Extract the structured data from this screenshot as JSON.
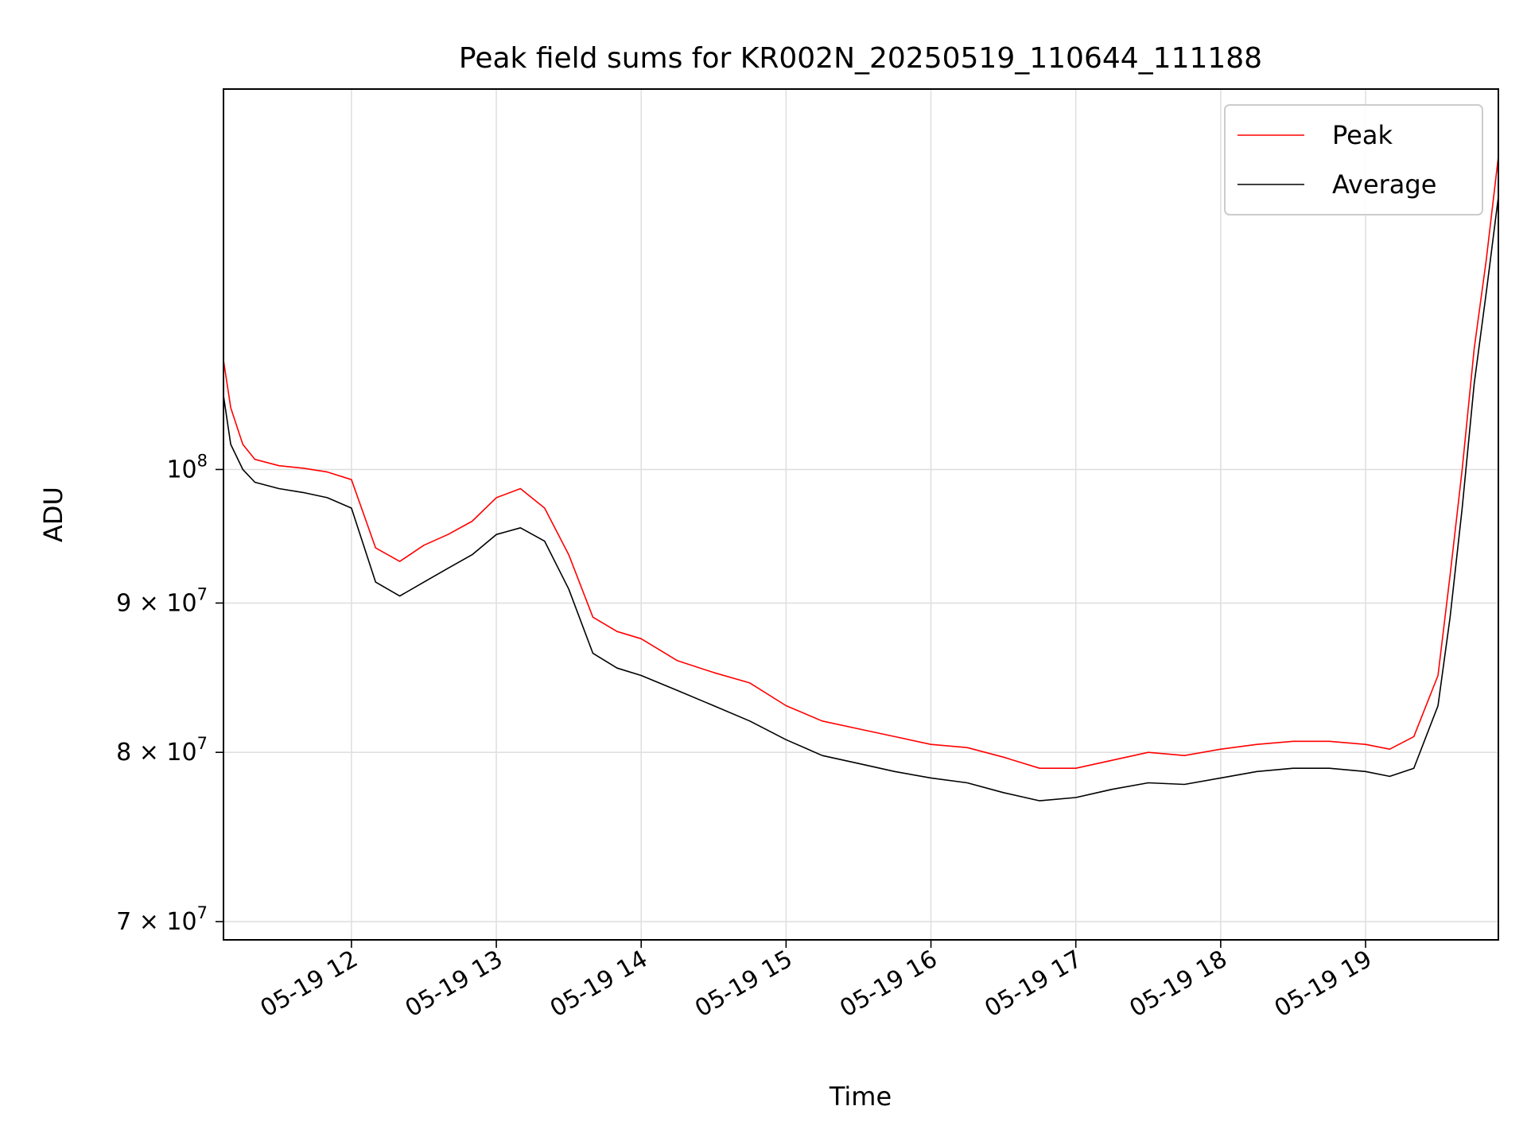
{
  "chart_data": {
    "type": "line",
    "title": "Peak field sums for KR002N_20250519_110644_111188",
    "xlabel": "Time",
    "ylabel": "ADU",
    "y_scale": "log",
    "xlim": [
      "2025-05-19 11:07",
      "2025-05-19 19:55"
    ],
    "ylim": [
      69000000,
      135000000
    ],
    "x_ticks": [
      "05-19 12",
      "05-19 13",
      "05-19 14",
      "05-19 15",
      "05-19 16",
      "05-19 17",
      "05-19 18",
      "05-19 19"
    ],
    "y_ticks": [
      {
        "value": 70000000,
        "mantissa": "7",
        "exponent": "7"
      },
      {
        "value": 80000000,
        "mantissa": "8",
        "exponent": "7"
      },
      {
        "value": 90000000,
        "mantissa": "9",
        "exponent": "7"
      },
      {
        "value": 100000000,
        "mantissa": "",
        "exponent": "8"
      }
    ],
    "grid": true,
    "legend_position": "top-right",
    "series": [
      {
        "name": "Peak",
        "color": "#ff0000",
        "x": [
          "2025-05-19 11:07",
          "2025-05-19 11:10",
          "2025-05-19 11:15",
          "2025-05-19 11:20",
          "2025-05-19 11:30",
          "2025-05-19 11:40",
          "2025-05-19 11:50",
          "2025-05-19 12:00",
          "2025-05-19 12:10",
          "2025-05-19 12:20",
          "2025-05-19 12:30",
          "2025-05-19 12:40",
          "2025-05-19 12:50",
          "2025-05-19 13:00",
          "2025-05-19 13:10",
          "2025-05-19 13:20",
          "2025-05-19 13:30",
          "2025-05-19 13:40",
          "2025-05-19 13:50",
          "2025-05-19 14:00",
          "2025-05-19 14:15",
          "2025-05-19 14:30",
          "2025-05-19 14:45",
          "2025-05-19 15:00",
          "2025-05-19 15:15",
          "2025-05-19 15:30",
          "2025-05-19 15:45",
          "2025-05-19 16:00",
          "2025-05-19 16:15",
          "2025-05-19 16:30",
          "2025-05-19 16:45",
          "2025-05-19 17:00",
          "2025-05-19 17:15",
          "2025-05-19 17:30",
          "2025-05-19 17:45",
          "2025-05-19 18:00",
          "2025-05-19 18:15",
          "2025-05-19 18:30",
          "2025-05-19 18:45",
          "2025-05-19 19:00",
          "2025-05-19 19:10",
          "2025-05-19 19:20",
          "2025-05-19 19:30",
          "2025-05-19 19:35",
          "2025-05-19 19:40",
          "2025-05-19 19:45",
          "2025-05-19 19:50",
          "2025-05-19 19:55"
        ],
        "y": [
          109000000,
          105000000,
          102000000,
          100800000,
          100300000,
          100100000,
          99800000,
          99200000,
          94000000,
          93000000,
          94200000,
          95000000,
          96000000,
          97800000,
          98500000,
          97000000,
          93500000,
          89000000,
          88000000,
          87500000,
          86000000,
          85200000,
          84500000,
          83000000,
          82000000,
          81500000,
          81000000,
          80500000,
          80300000,
          79700000,
          79000000,
          79000000,
          79500000,
          80000000,
          79800000,
          80200000,
          80500000,
          80700000,
          80700000,
          80500000,
          80200000,
          81000000,
          85000000,
          92000000,
          100000000,
          110000000,
          118000000,
          128000000
        ]
      },
      {
        "name": "Average",
        "color": "#000000",
        "x": [
          "2025-05-19 11:07",
          "2025-05-19 11:10",
          "2025-05-19 11:15",
          "2025-05-19 11:20",
          "2025-05-19 11:30",
          "2025-05-19 11:40",
          "2025-05-19 11:50",
          "2025-05-19 12:00",
          "2025-05-19 12:10",
          "2025-05-19 12:20",
          "2025-05-19 12:30",
          "2025-05-19 12:40",
          "2025-05-19 12:50",
          "2025-05-19 13:00",
          "2025-05-19 13:10",
          "2025-05-19 13:20",
          "2025-05-19 13:30",
          "2025-05-19 13:40",
          "2025-05-19 13:50",
          "2025-05-19 14:00",
          "2025-05-19 14:15",
          "2025-05-19 14:30",
          "2025-05-19 14:45",
          "2025-05-19 15:00",
          "2025-05-19 15:15",
          "2025-05-19 15:30",
          "2025-05-19 15:45",
          "2025-05-19 16:00",
          "2025-05-19 16:15",
          "2025-05-19 16:30",
          "2025-05-19 16:45",
          "2025-05-19 17:00",
          "2025-05-19 17:15",
          "2025-05-19 17:30",
          "2025-05-19 17:45",
          "2025-05-19 18:00",
          "2025-05-19 18:15",
          "2025-05-19 18:30",
          "2025-05-19 18:45",
          "2025-05-19 19:00",
          "2025-05-19 19:10",
          "2025-05-19 19:20",
          "2025-05-19 19:30",
          "2025-05-19 19:35",
          "2025-05-19 19:40",
          "2025-05-19 19:45",
          "2025-05-19 19:50",
          "2025-05-19 19:55"
        ],
        "y": [
          106000000,
          102000000,
          100000000,
          99000000,
          98500000,
          98200000,
          97800000,
          97000000,
          91500000,
          90500000,
          91500000,
          92500000,
          93500000,
          95000000,
          95500000,
          94500000,
          91000000,
          86500000,
          85500000,
          85000000,
          84000000,
          83000000,
          82000000,
          80800000,
          79800000,
          79300000,
          78800000,
          78400000,
          78100000,
          77500000,
          77000000,
          77200000,
          77700000,
          78100000,
          78000000,
          78400000,
          78800000,
          79000000,
          79000000,
          78800000,
          78500000,
          79000000,
          83000000,
          89000000,
          97000000,
          107000000,
          115000000,
          124000000
        ]
      }
    ]
  }
}
